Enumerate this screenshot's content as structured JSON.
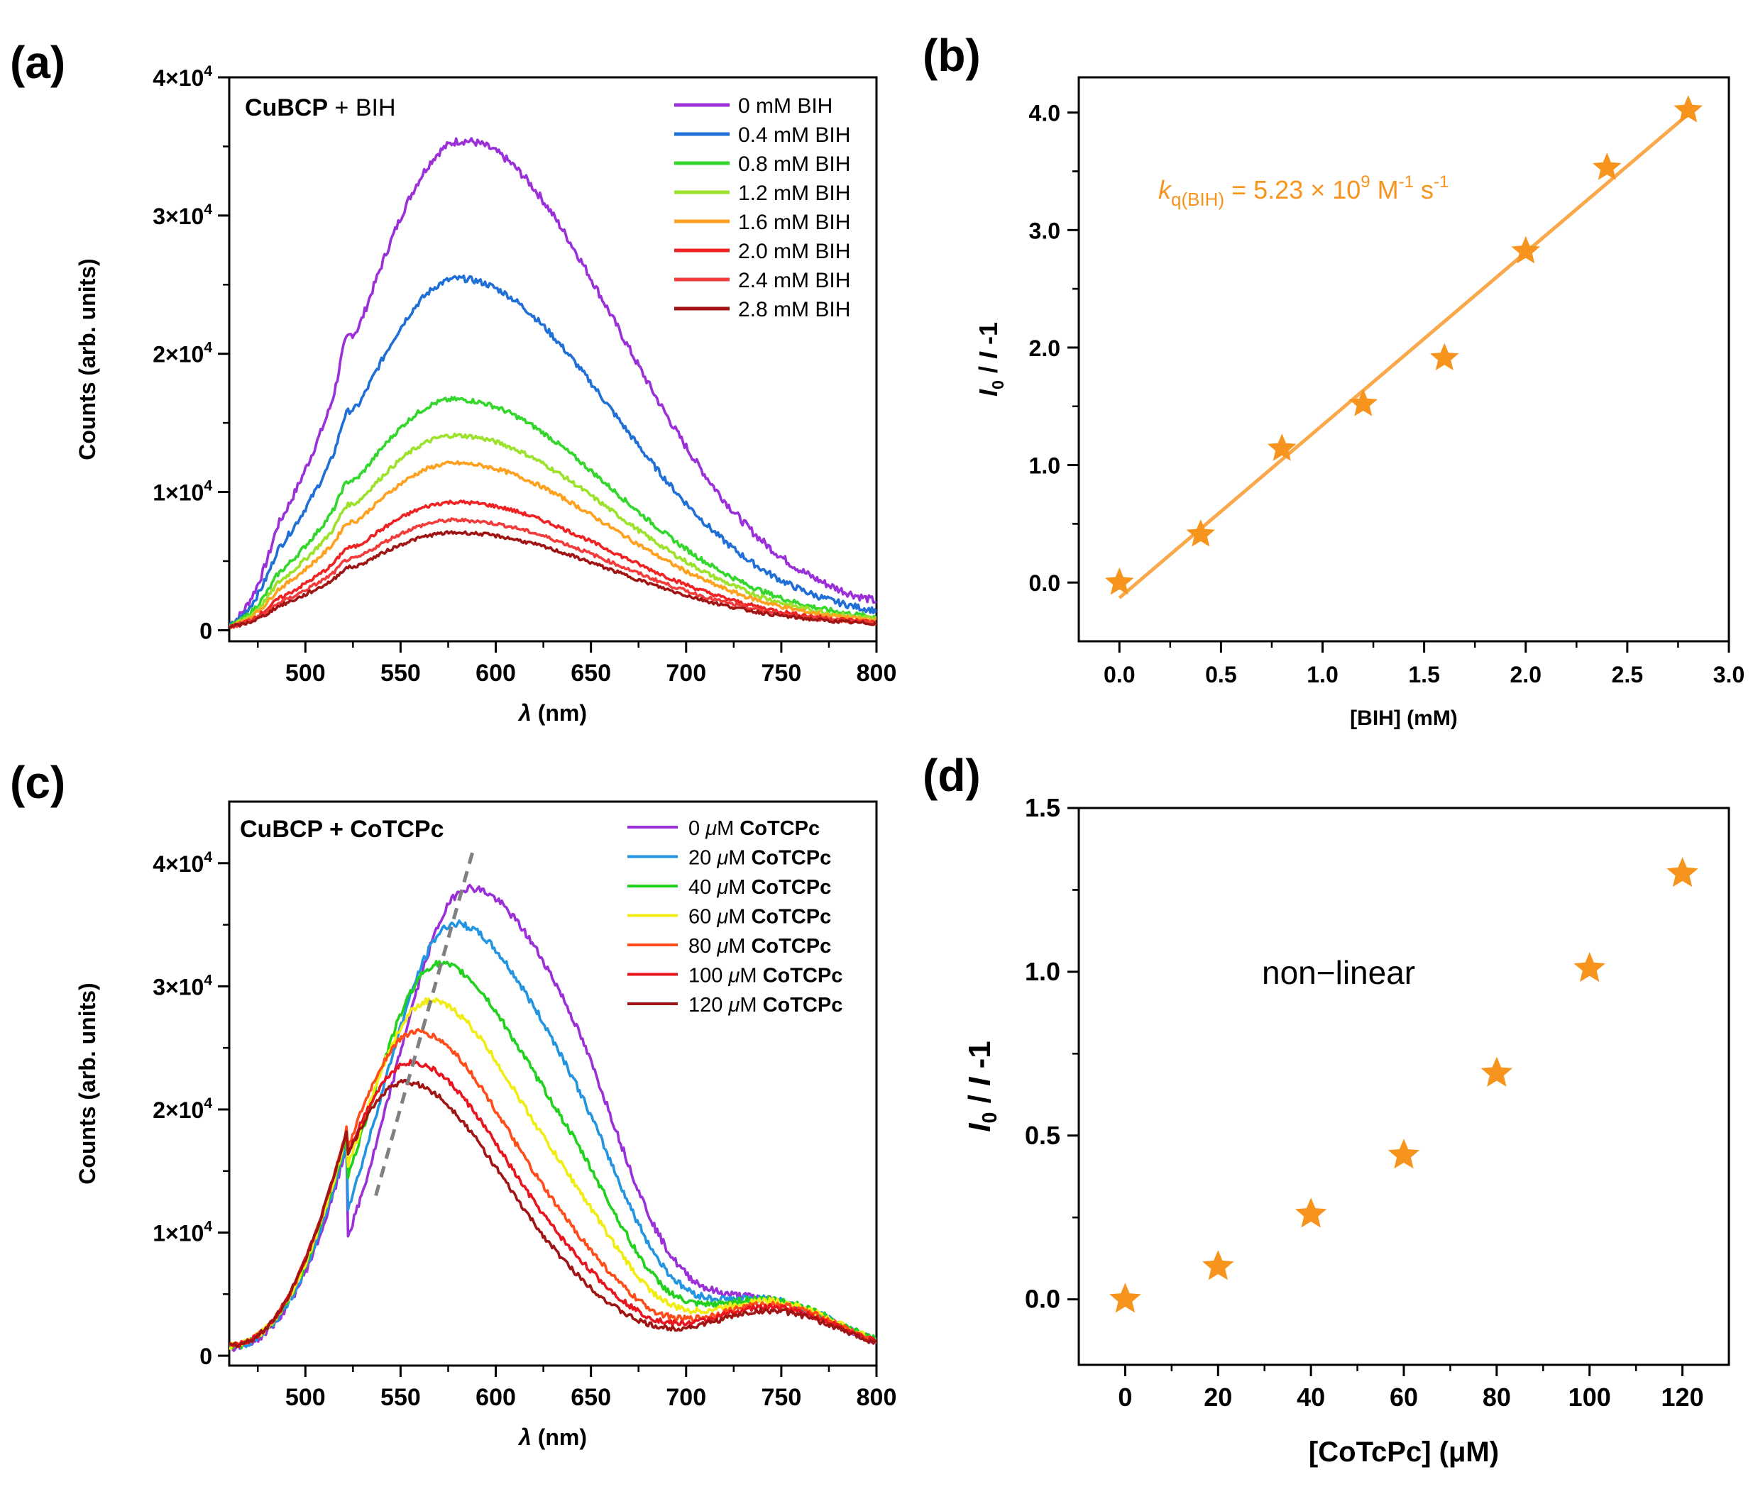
{
  "panel_labels": [
    "(a)",
    "(b)",
    "(c)",
    "(d)"
  ],
  "chart_data": [
    {
      "panel": "(a)",
      "type": "line",
      "annotation": {
        "bold": "CuBCP",
        "rest": " + BIH"
      },
      "xlabel_sym": "λ",
      "xlabel_rest": " (nm)",
      "ylabel": "Counts (arb. units)",
      "xlim": [
        460,
        800
      ],
      "ylim": [
        -800,
        40000
      ],
      "xticks": [
        500,
        550,
        600,
        650,
        700,
        750,
        800
      ],
      "yticks": [
        {
          "mant": "0",
          "exp": ""
        },
        {
          "mant": "1×10",
          "exp": "4"
        },
        {
          "mant": "2×10",
          "exp": "4"
        },
        {
          "mant": "3×10",
          "exp": "4"
        },
        {
          "mant": "4×10",
          "exp": "4"
        }
      ],
      "legend_position": "top-right",
      "series": [
        {
          "name": "0 mM BIH",
          "color": "#9b30d9",
          "peak": 35200,
          "peak_x": 582,
          "tail": 1800,
          "start": 300
        },
        {
          "name": "0.4 mM BIH",
          "color": "#1f6fd6",
          "peak": 25300,
          "peak_x": 580,
          "tail": 1200,
          "start": 300
        },
        {
          "name": "0.8 mM BIH",
          "color": "#33d62b",
          "peak": 16600,
          "peak_x": 578,
          "tail": 900,
          "start": 280
        },
        {
          "name": "1.2 mM BIH",
          "color": "#9be22a",
          "peak": 14000,
          "peak_x": 578,
          "tail": 800,
          "start": 270
        },
        {
          "name": "1.6 mM BIH",
          "color": "#ffa11f",
          "peak": 12000,
          "peak_x": 578,
          "tail": 700,
          "start": 260
        },
        {
          "name": "2.0 mM BIH",
          "color": "#ee2222",
          "peak": 9200,
          "peak_x": 578,
          "tail": 600,
          "start": 250
        },
        {
          "name": "2.4 mM BIH",
          "color": "#f23b3b",
          "peak": 7900,
          "peak_x": 578,
          "tail": 550,
          "start": 240
        },
        {
          "name": "2.8 mM BIH",
          "color": "#a01414",
          "peak": 7000,
          "peak_x": 578,
          "tail": 500,
          "start": 230
        }
      ]
    },
    {
      "panel": "(b)",
      "type": "scatter",
      "xlabel": "[BIH] (mM)",
      "ylabel_parts": [
        "I",
        "0",
        " / ",
        "I",
        " -1"
      ],
      "xlim": [
        -0.2,
        3.0
      ],
      "ylim": [
        -0.5,
        4.3
      ],
      "xticks": [
        "0.0",
        "0.5",
        "1.0",
        "1.5",
        "2.0",
        "2.5",
        "3.0"
      ],
      "yticks": [
        "0.0",
        "1.0",
        "2.0",
        "3.0",
        "4.0"
      ],
      "marker_color": "#f7941d",
      "x": [
        0.0,
        0.4,
        0.8,
        1.2,
        1.6,
        2.0,
        2.4,
        2.8
      ],
      "y": [
        0.0,
        0.41,
        1.14,
        1.52,
        1.91,
        2.82,
        3.53,
        4.02
      ],
      "fit": {
        "slope": 1.47,
        "intercept": -0.13,
        "x_range": [
          0.0,
          2.8
        ],
        "color": "#f9a94b"
      },
      "annotation": {
        "k": "k",
        "sub": "q(BIH)",
        "eq": " = 5.23 × 10",
        "sup9": "9",
        "unit1": " M",
        "sup1": "-1",
        "unit2": " s",
        "sup2": "-1"
      }
    },
    {
      "panel": "(c)",
      "type": "line",
      "annotation": "CuBCP + CoTCPc",
      "xlabel_sym": "λ",
      "xlabel_rest": " (nm)",
      "ylabel": "Counts (arb. units)",
      "xlim": [
        460,
        800
      ],
      "ylim": [
        -800,
        45000
      ],
      "xticks": [
        500,
        550,
        600,
        650,
        700,
        750,
        800
      ],
      "yticks": [
        {
          "mant": "0",
          "exp": ""
        },
        {
          "mant": "1×10",
          "exp": "4"
        },
        {
          "mant": "2×10",
          "exp": "4"
        },
        {
          "mant": "3×10",
          "exp": "4"
        },
        {
          "mant": "4×10",
          "exp": "4"
        }
      ],
      "legend_position": "top-right",
      "dashed_guide": {
        "x": [
          537,
          588
        ],
        "y": [
          13000,
          41000
        ],
        "color": "#808080"
      },
      "series": [
        {
          "name_num": "0 ",
          "name_unit": "μ",
          "name_rest": "M ",
          "name_bold": "CoTCPc",
          "color": "#9b30d9",
          "peak": 37800,
          "peak_x": 585,
          "dip": 5500,
          "bump": 4000
        },
        {
          "name_num": "20 ",
          "name_unit": "μ",
          "name_rest": "M ",
          "name_bold": "CoTCPc",
          "color": "#2294e0",
          "peak": 35000,
          "peak_x": 578,
          "dip": 5000,
          "bump": 4200
        },
        {
          "name_num": "40 ",
          "name_unit": "μ",
          "name_rest": "M ",
          "name_bold": "CoTCPc",
          "color": "#22d11e",
          "peak": 31800,
          "peak_x": 570,
          "dip": 4500,
          "bump": 4400
        },
        {
          "name_num": "60 ",
          "name_unit": "μ",
          "name_rest": "M ",
          "name_bold": "CoTCPc",
          "color": "#f0ec14",
          "peak": 28800,
          "peak_x": 565,
          "dip": 3500,
          "bump": 4300
        },
        {
          "name_num": "80 ",
          "name_unit": "μ",
          "name_rest": "M ",
          "name_bold": "CoTCPc",
          "color": "#ff4c1a",
          "peak": 26300,
          "peak_x": 558,
          "dip": 2200,
          "bump": 4100
        },
        {
          "name_num": "100 ",
          "name_unit": "μ",
          "name_rest": "M ",
          "name_bold": "CoTCPc",
          "color": "#e8141e",
          "peak": 23800,
          "peak_x": 555,
          "dip": 1600,
          "bump": 3900
        },
        {
          "name_num": "120 ",
          "name_unit": "μ",
          "name_rest": "M ",
          "name_bold": "CoTCPc",
          "color": "#a01414",
          "peak": 22200,
          "peak_x": 552,
          "dip": 1000,
          "bump": 3600
        }
      ]
    },
    {
      "panel": "(d)",
      "type": "scatter",
      "xlabel": "[CoTcPc] (μM)",
      "ylabel_parts": [
        "I",
        "0",
        " / ",
        "I",
        " -1"
      ],
      "xlim": [
        -10,
        130
      ],
      "ylim": [
        -0.2,
        1.5
      ],
      "xticks": [
        "0",
        "20",
        "40",
        "60",
        "80",
        "100",
        "120"
      ],
      "yticks": [
        "0.0",
        "0.5",
        "1.0",
        "1.5"
      ],
      "marker_color": "#f7941d",
      "x": [
        0,
        20,
        40,
        60,
        80,
        100,
        120
      ],
      "y": [
        0.0,
        0.1,
        0.26,
        0.44,
        0.69,
        1.01,
        1.3
      ],
      "annotation": "non−linear"
    }
  ]
}
